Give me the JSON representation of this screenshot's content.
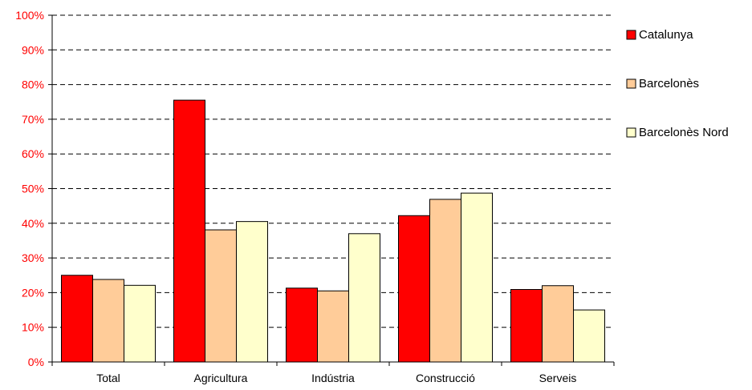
{
  "chart_data": {
    "type": "bar",
    "categories": [
      "Total",
      "Agricultura",
      "Indústria",
      "Construcció",
      "Serveis"
    ],
    "series": [
      {
        "name": "Catalunya",
        "color": "#FF0000",
        "values": [
          25,
          75.5,
          21.3,
          42.2,
          20.9
        ]
      },
      {
        "name": "Barcelonès",
        "color": "#FFCC99",
        "values": [
          23.8,
          38.1,
          20.5,
          46.9,
          22
        ]
      },
      {
        "name": "Barcelonès Nord",
        "color": "#FFFFCC",
        "values": [
          22.1,
          40.5,
          37,
          48.7,
          15
        ]
      }
    ],
    "y_ticks": [
      "0%",
      "10%",
      "20%",
      "30%",
      "40%",
      "50%",
      "60%",
      "70%",
      "80%",
      "90%",
      "100%"
    ],
    "ylim": [
      0,
      100
    ],
    "title": "",
    "xlabel": "",
    "ylabel": "",
    "grid": "horizontal dashed",
    "legend_position": "right",
    "colors": {
      "y_tick_label": "#FF0000",
      "x_tick_label": "#000000",
      "gridline": "#000000",
      "bar_outline": "#000000"
    }
  }
}
